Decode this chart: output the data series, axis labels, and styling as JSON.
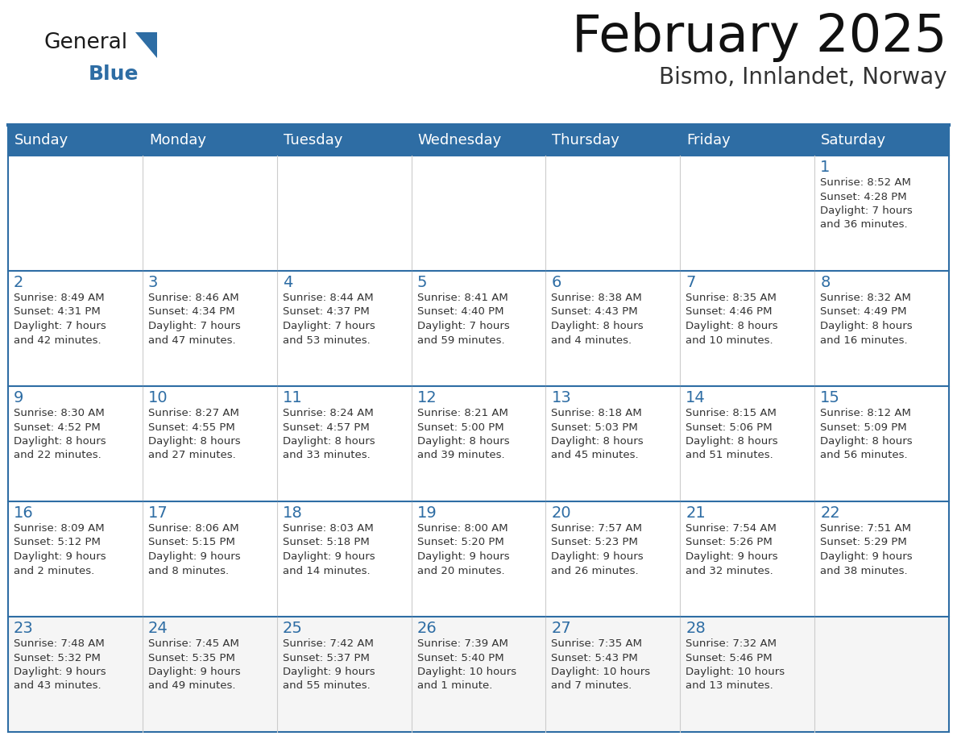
{
  "title": "February 2025",
  "subtitle": "Bismo, Innlandet, Norway",
  "header_bg": "#2E6DA4",
  "header_text_color": "#FFFFFF",
  "cell_bg": "#FFFFFF",
  "cell_bg_last": "#F5F5F5",
  "day_number_color": "#2E6DA4",
  "info_text_color": "#333333",
  "border_color": "#2E6DA4",
  "grid_color": "#CCCCCC",
  "days_of_week": [
    "Sunday",
    "Monday",
    "Tuesday",
    "Wednesday",
    "Thursday",
    "Friday",
    "Saturday"
  ],
  "weeks": [
    [
      {
        "day": null,
        "info": ""
      },
      {
        "day": null,
        "info": ""
      },
      {
        "day": null,
        "info": ""
      },
      {
        "day": null,
        "info": ""
      },
      {
        "day": null,
        "info": ""
      },
      {
        "day": null,
        "info": ""
      },
      {
        "day": 1,
        "info": "Sunrise: 8:52 AM\nSunset: 4:28 PM\nDaylight: 7 hours\nand 36 minutes."
      }
    ],
    [
      {
        "day": 2,
        "info": "Sunrise: 8:49 AM\nSunset: 4:31 PM\nDaylight: 7 hours\nand 42 minutes."
      },
      {
        "day": 3,
        "info": "Sunrise: 8:46 AM\nSunset: 4:34 PM\nDaylight: 7 hours\nand 47 minutes."
      },
      {
        "day": 4,
        "info": "Sunrise: 8:44 AM\nSunset: 4:37 PM\nDaylight: 7 hours\nand 53 minutes."
      },
      {
        "day": 5,
        "info": "Sunrise: 8:41 AM\nSunset: 4:40 PM\nDaylight: 7 hours\nand 59 minutes."
      },
      {
        "day": 6,
        "info": "Sunrise: 8:38 AM\nSunset: 4:43 PM\nDaylight: 8 hours\nand 4 minutes."
      },
      {
        "day": 7,
        "info": "Sunrise: 8:35 AM\nSunset: 4:46 PM\nDaylight: 8 hours\nand 10 minutes."
      },
      {
        "day": 8,
        "info": "Sunrise: 8:32 AM\nSunset: 4:49 PM\nDaylight: 8 hours\nand 16 minutes."
      }
    ],
    [
      {
        "day": 9,
        "info": "Sunrise: 8:30 AM\nSunset: 4:52 PM\nDaylight: 8 hours\nand 22 minutes."
      },
      {
        "day": 10,
        "info": "Sunrise: 8:27 AM\nSunset: 4:55 PM\nDaylight: 8 hours\nand 27 minutes."
      },
      {
        "day": 11,
        "info": "Sunrise: 8:24 AM\nSunset: 4:57 PM\nDaylight: 8 hours\nand 33 minutes."
      },
      {
        "day": 12,
        "info": "Sunrise: 8:21 AM\nSunset: 5:00 PM\nDaylight: 8 hours\nand 39 minutes."
      },
      {
        "day": 13,
        "info": "Sunrise: 8:18 AM\nSunset: 5:03 PM\nDaylight: 8 hours\nand 45 minutes."
      },
      {
        "day": 14,
        "info": "Sunrise: 8:15 AM\nSunset: 5:06 PM\nDaylight: 8 hours\nand 51 minutes."
      },
      {
        "day": 15,
        "info": "Sunrise: 8:12 AM\nSunset: 5:09 PM\nDaylight: 8 hours\nand 56 minutes."
      }
    ],
    [
      {
        "day": 16,
        "info": "Sunrise: 8:09 AM\nSunset: 5:12 PM\nDaylight: 9 hours\nand 2 minutes."
      },
      {
        "day": 17,
        "info": "Sunrise: 8:06 AM\nSunset: 5:15 PM\nDaylight: 9 hours\nand 8 minutes."
      },
      {
        "day": 18,
        "info": "Sunrise: 8:03 AM\nSunset: 5:18 PM\nDaylight: 9 hours\nand 14 minutes."
      },
      {
        "day": 19,
        "info": "Sunrise: 8:00 AM\nSunset: 5:20 PM\nDaylight: 9 hours\nand 20 minutes."
      },
      {
        "day": 20,
        "info": "Sunrise: 7:57 AM\nSunset: 5:23 PM\nDaylight: 9 hours\nand 26 minutes."
      },
      {
        "day": 21,
        "info": "Sunrise: 7:54 AM\nSunset: 5:26 PM\nDaylight: 9 hours\nand 32 minutes."
      },
      {
        "day": 22,
        "info": "Sunrise: 7:51 AM\nSunset: 5:29 PM\nDaylight: 9 hours\nand 38 minutes."
      }
    ],
    [
      {
        "day": 23,
        "info": "Sunrise: 7:48 AM\nSunset: 5:32 PM\nDaylight: 9 hours\nand 43 minutes."
      },
      {
        "day": 24,
        "info": "Sunrise: 7:45 AM\nSunset: 5:35 PM\nDaylight: 9 hours\nand 49 minutes."
      },
      {
        "day": 25,
        "info": "Sunrise: 7:42 AM\nSunset: 5:37 PM\nDaylight: 9 hours\nand 55 minutes."
      },
      {
        "day": 26,
        "info": "Sunrise: 7:39 AM\nSunset: 5:40 PM\nDaylight: 10 hours\nand 1 minute."
      },
      {
        "day": 27,
        "info": "Sunrise: 7:35 AM\nSunset: 5:43 PM\nDaylight: 10 hours\nand 7 minutes."
      },
      {
        "day": 28,
        "info": "Sunrise: 7:32 AM\nSunset: 5:46 PM\nDaylight: 10 hours\nand 13 minutes."
      },
      {
        "day": null,
        "info": ""
      }
    ]
  ],
  "logo_general_color": "#1a1a1a",
  "logo_blue_color": "#2E6DA4",
  "logo_triangle_color": "#2E6DA4",
  "figwidth": 11.88,
  "figheight": 9.18,
  "dpi": 100
}
